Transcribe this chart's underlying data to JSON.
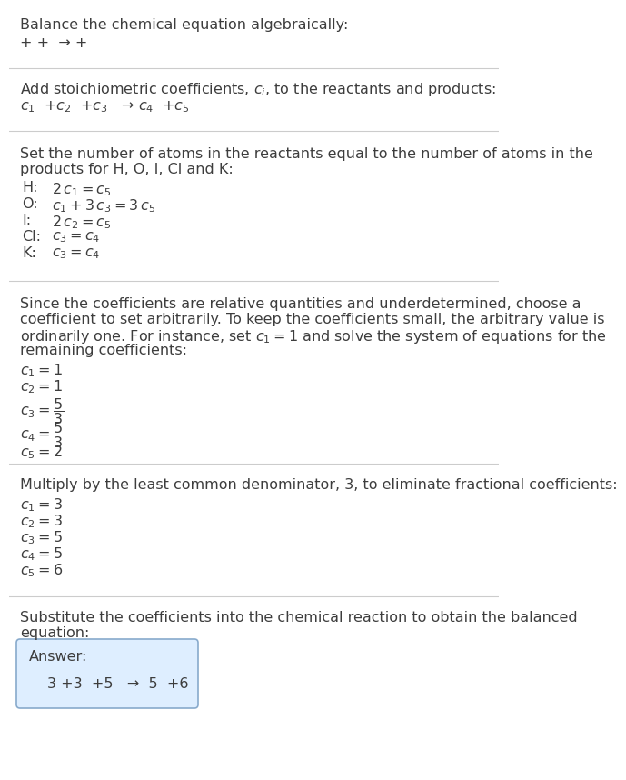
{
  "bg_color": "#ffffff",
  "text_color": "#3d3d3d",
  "line_color": "#cccccc",
  "title": "Balance the chemical equation algebraically:",
  "s1_eq": "+ +  → +",
  "s2_header": "Add stoichiometric coefficients, $c_i$, to the reactants and products:",
  "s2_eq": "$c_1$  +$c_2$  +$c_3$   → $c_4$  +$c_5$",
  "s3_header1": "Set the number of atoms in the reactants equal to the number of atoms in the",
  "s3_header2": "products for H, O, I, Cl and K:",
  "s3_eqs": [
    [
      "H:",
      "$2\\,c_1 = c_5$"
    ],
    [
      "O:",
      "$c_1 + 3\\,c_3 = 3\\,c_5$"
    ],
    [
      "I:",
      "$2\\,c_2 = c_5$"
    ],
    [
      "Cl:",
      "$c_3 = c_4$"
    ],
    [
      "K:",
      "$c_3 = c_4$"
    ]
  ],
  "s4_header1": "Since the coefficients are relative quantities and underdetermined, choose a",
  "s4_header2": "coefficient to set arbitrarily. To keep the coefficients small, the arbitrary value is",
  "s4_header3": "ordinarily one. For instance, set $c_1 = 1$ and solve the system of equations for the",
  "s4_header4": "remaining coefficients:",
  "s4_vals": [
    "$c_1 = 1$",
    "$c_2 = 1$",
    "$c_3 = \\dfrac{5}{3}$",
    "$c_4 = \\dfrac{5}{3}$",
    "$c_5 = 2$"
  ],
  "s5_header": "Multiply by the least common denominator, 3, to eliminate fractional coefficients:",
  "s5_vals": [
    "$c_1 = 3$",
    "$c_2 = 3$",
    "$c_3 = 5$",
    "$c_4 = 5$",
    "$c_5 = 6$"
  ],
  "s6_header1": "Substitute the coefficients into the chemical reaction to obtain the balanced",
  "s6_header2": "equation:",
  "answer_label": "Answer:",
  "answer_eq": "3 +3  +5   →  5  +6",
  "answer_box_color": "#deeeff",
  "answer_box_border": "#88aacc",
  "font_size": 11.5,
  "math_size": 11.5
}
